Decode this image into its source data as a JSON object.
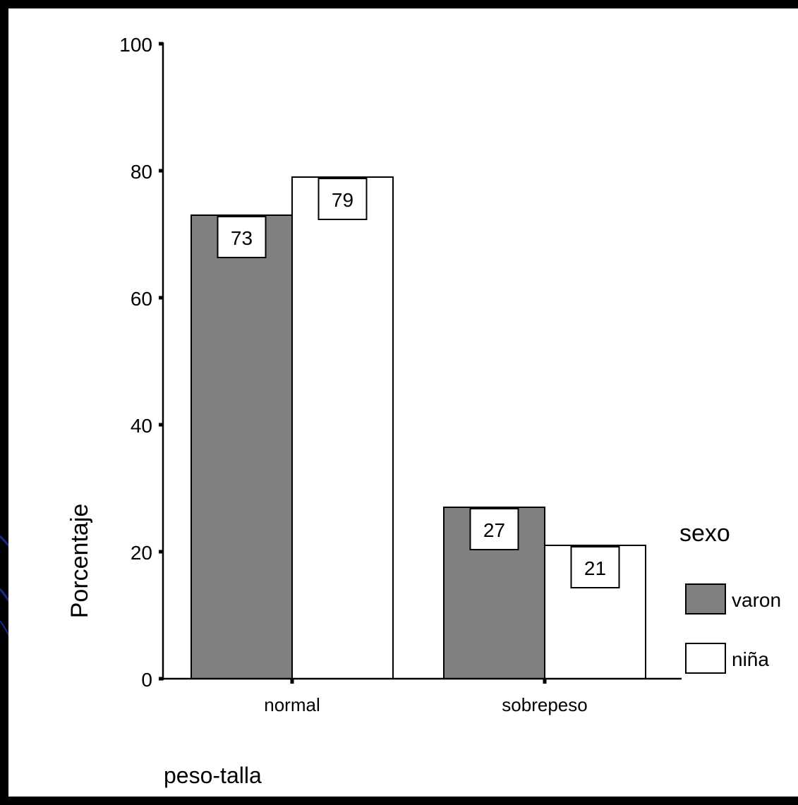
{
  "colors": {
    "frame": "#000000",
    "background": "#ffffff",
    "varon": "#808080",
    "nina": "#ffffff",
    "stroke": "#000000",
    "accent_curve": "#1a2a8c"
  },
  "chart_data": {
    "type": "bar",
    "xlabel": "peso-talla",
    "ylabel": "Porcentaje",
    "ylim": [
      0,
      100
    ],
    "yticks": [
      0,
      20,
      40,
      60,
      80,
      100
    ],
    "categories": [
      "normal",
      "sobrepeso"
    ],
    "series": [
      {
        "name": "varon",
        "values": [
          73,
          27
        ],
        "color": "#808080"
      },
      {
        "name": "niña",
        "values": [
          79,
          21
        ],
        "color": "#ffffff"
      }
    ],
    "data_labels": [
      [
        "73",
        "27"
      ],
      [
        "79",
        "21"
      ]
    ],
    "legend": {
      "title": "sexo",
      "placement": "right",
      "entries": [
        "varon",
        "niña"
      ]
    },
    "grid": false
  }
}
